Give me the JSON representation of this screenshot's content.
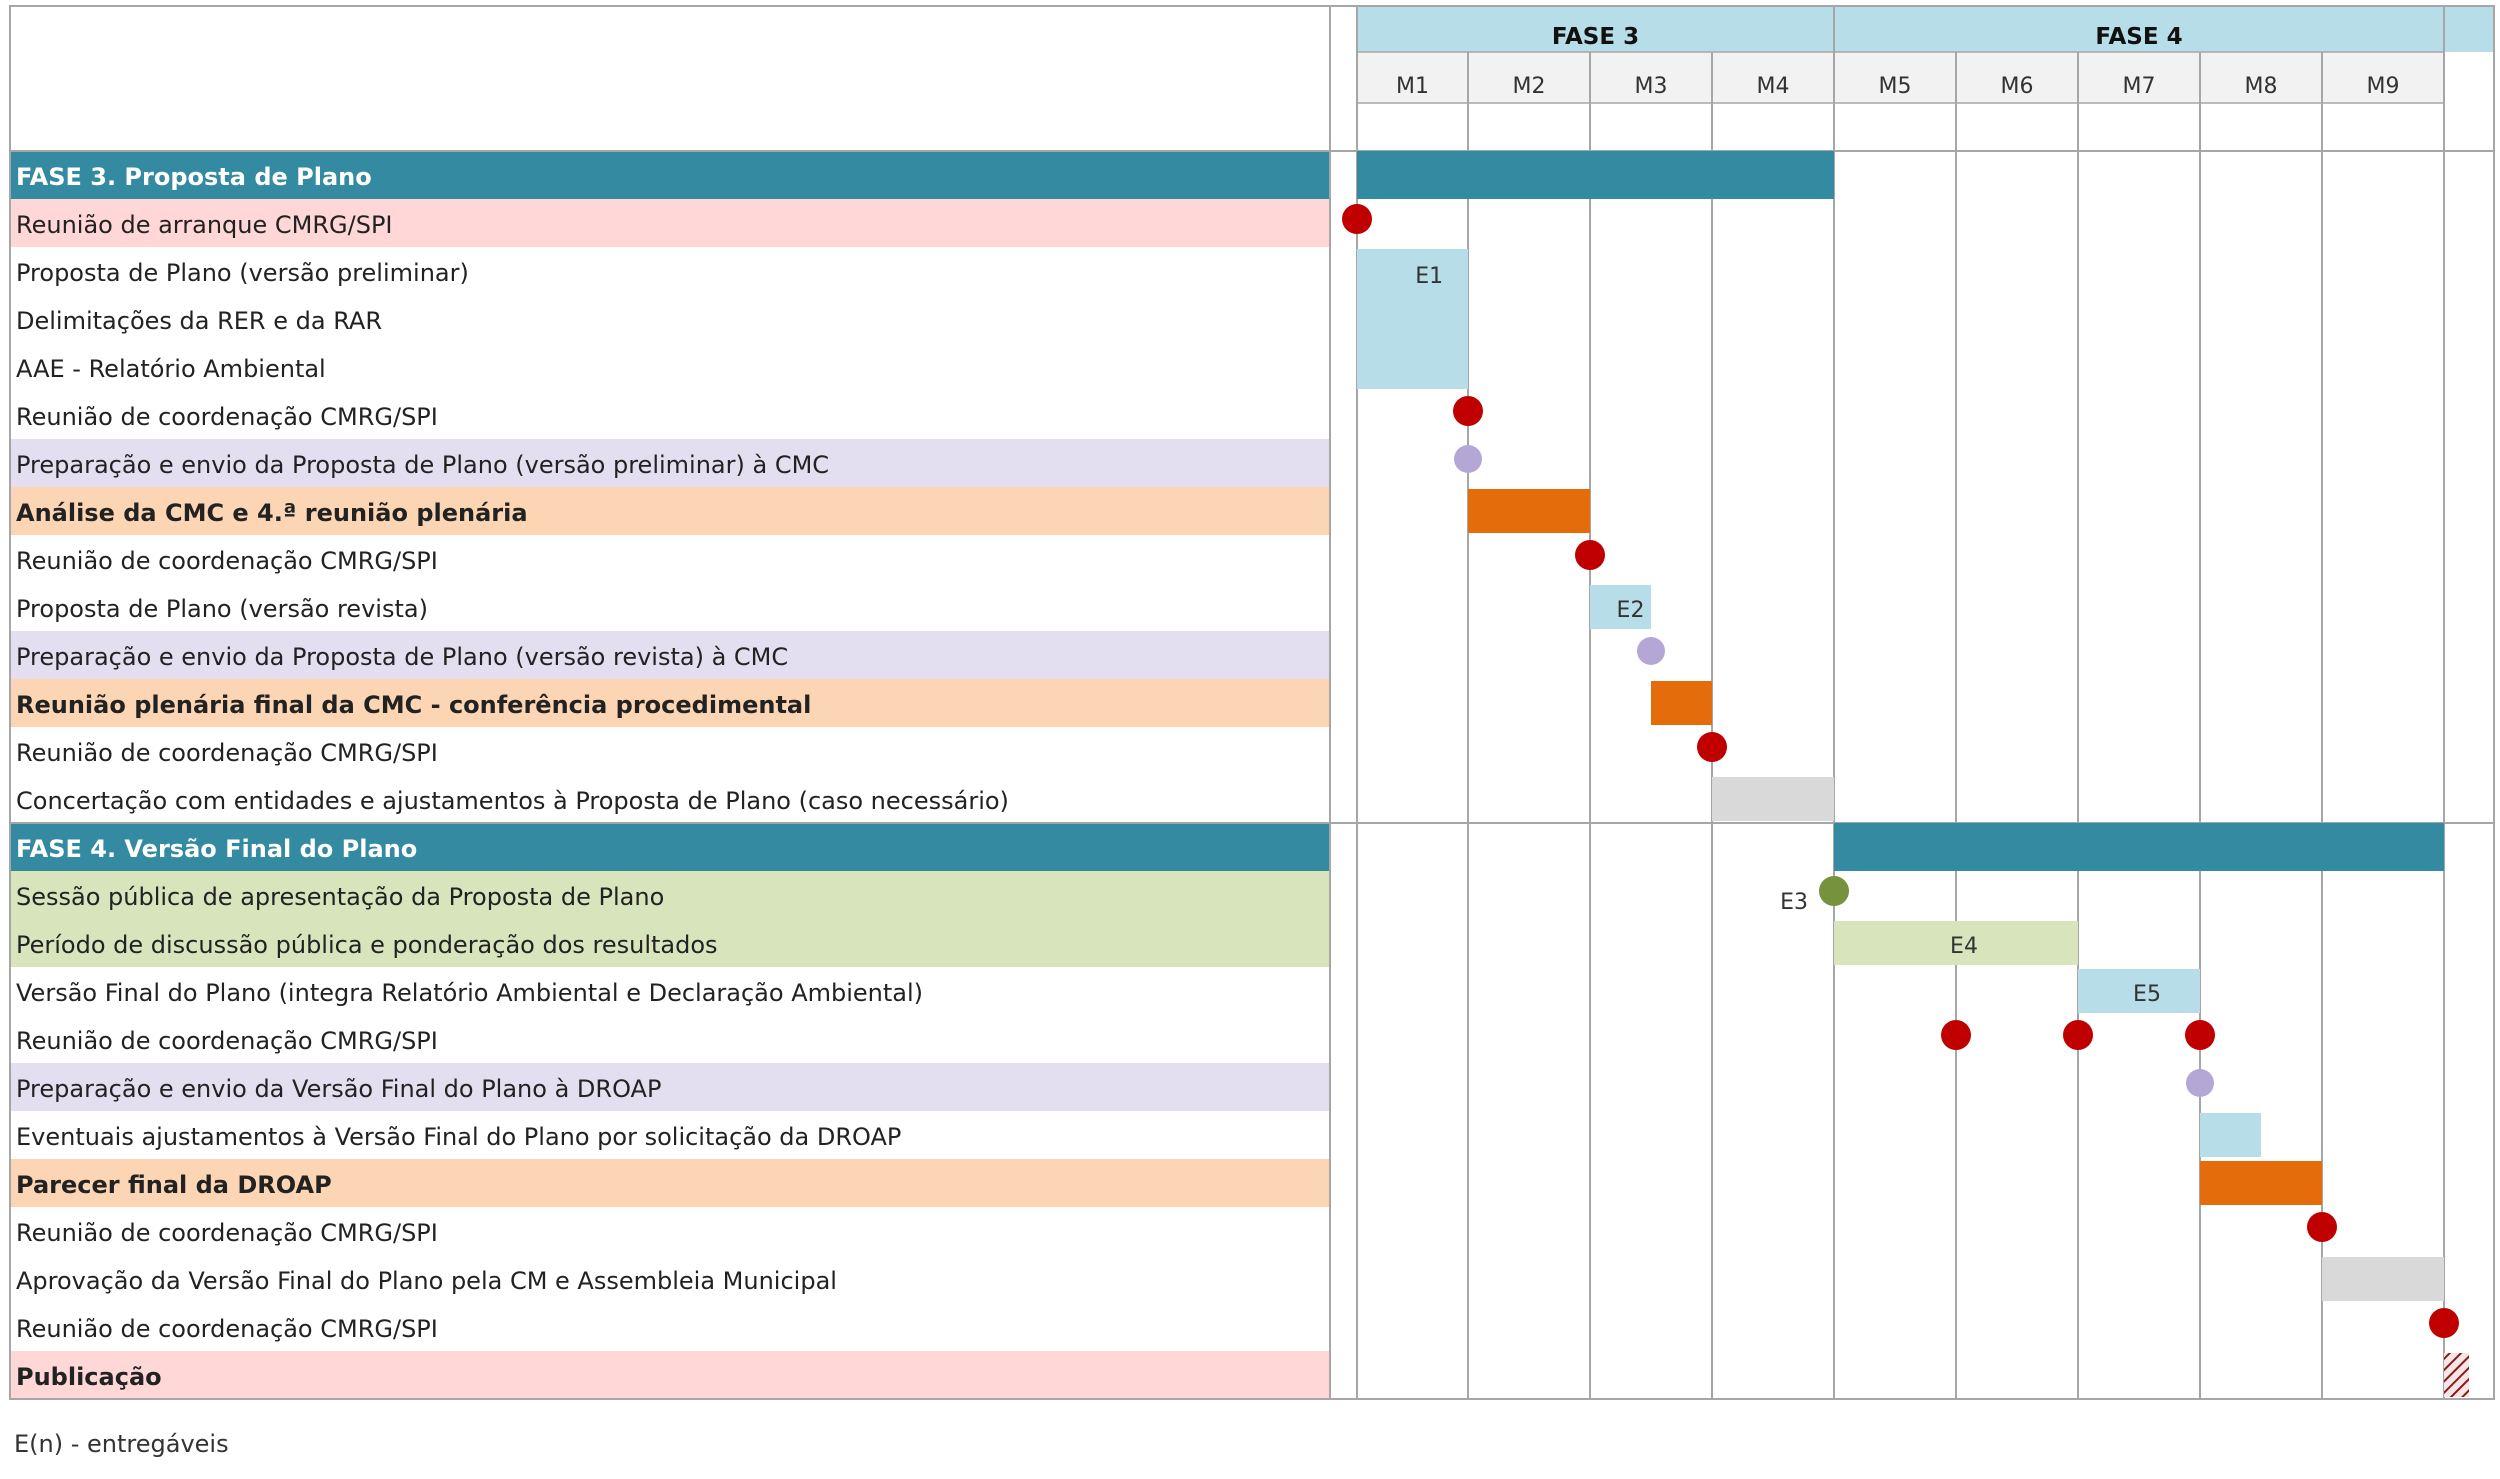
{
  "footnote": "E(n) - entregáveis",
  "chart_data": {
    "type": "gantt",
    "phases_header": [
      {
        "label": "FASE 3",
        "months": [
          "M1",
          "M2",
          "M3",
          "M4"
        ]
      },
      {
        "label": "FASE 4",
        "months": [
          "M5",
          "M6",
          "M7",
          "M8",
          "M9"
        ]
      }
    ],
    "months": [
      "M1",
      "M2",
      "M3",
      "M4",
      "M5",
      "M6",
      "M7",
      "M8",
      "M9"
    ],
    "colors": {
      "phase": "#338aa1",
      "header": "#b7dde8",
      "deliverable": "#b7dde8",
      "cmc": "#e46c0a",
      "pending": "#d9d9d9",
      "public": "#d7e4bc",
      "meeting": "#c00000",
      "send": "#b4a7d6",
      "session": "#76923c",
      "row_pink": "#ffd7d7",
      "row_lilac": "#e4dff0",
      "row_peach": "#fcd5b4",
      "row_green": "#d7e4bc"
    },
    "rows": [
      {
        "label": "FASE 3. Proposta de Plano",
        "type": "phase",
        "bar": [
          0,
          4
        ],
        "color": "phase"
      },
      {
        "label": "Reunião de arranque CMRG/SPI",
        "bg": "row_pink",
        "marker": {
          "at": 0,
          "color": "meeting"
        }
      },
      {
        "label": "Proposta de Plano (versão preliminar)",
        "span": {
          "start": 0,
          "end": 1,
          "rows": 3,
          "color": "deliverable",
          "tag": "E1"
        }
      },
      {
        "label": "Delimitações da RER e da RAR"
      },
      {
        "label": "AAE - Relatório Ambiental"
      },
      {
        "label": "Reunião de coordenação CMRG/SPI",
        "marker": {
          "at": 1,
          "color": "meeting"
        }
      },
      {
        "label": "Preparação e envio da Proposta de Plano (versão preliminar) à CMC",
        "bg": "row_lilac",
        "marker": {
          "at": 1,
          "color": "send",
          "small": true
        }
      },
      {
        "label": "Análise da CMC e 4.ª reunião plenária",
        "bold": true,
        "bg": "row_peach",
        "bar": [
          1,
          2
        ],
        "color": "cmc"
      },
      {
        "label": "Reunião de coordenação CMRG/SPI",
        "marker": {
          "at": 2,
          "color": "meeting"
        }
      },
      {
        "label": "Proposta de Plano (versão revista)",
        "bar": [
          2,
          2.5
        ],
        "color": "deliverable",
        "tag": "E2"
      },
      {
        "label": "Preparação e envio da Proposta de Plano (versão revista) à CMC",
        "bg": "row_lilac",
        "marker": {
          "at": 2.5,
          "color": "send",
          "small": true
        }
      },
      {
        "label": "Reunião plenária final da CMC - conferência procedimental",
        "bold": true,
        "bg": "row_peach",
        "bar": [
          2.5,
          3
        ],
        "color": "cmc"
      },
      {
        "label": "Reunião de coordenação CMRG/SPI",
        "marker": {
          "at": 3,
          "color": "meeting"
        }
      },
      {
        "label": "Concertação com entidades e ajustamentos à Proposta de Plano (caso necessário)",
        "bar": [
          3,
          4
        ],
        "color": "pending"
      },
      {
        "label": "FASE 4. Versão Final do Plano",
        "type": "phase",
        "bar": [
          4,
          9
        ],
        "color": "phase"
      },
      {
        "label": "Sessão pública de apresentação da Proposta de Plano",
        "bg": "row_green",
        "marker": {
          "at": 4,
          "color": "session"
        },
        "tag_left": "E3"
      },
      {
        "label": "Período de discussão pública e ponderação dos resultados",
        "bg": "row_green",
        "bar": [
          4,
          6
        ],
        "color": "public",
        "tag": "E4"
      },
      {
        "label": "Versão Final do Plano (integra Relatório Ambiental e Declaração Ambiental)",
        "bar": [
          6,
          7
        ],
        "color": "deliverable",
        "tag": "E5"
      },
      {
        "label": "Reunião de coordenação CMRG/SPI",
        "markers": [
          5,
          6,
          7
        ],
        "color": "meeting"
      },
      {
        "label": "Preparação e envio da Versão Final do Plano à DROAP",
        "bg": "row_lilac",
        "marker": {
          "at": 7,
          "color": "send",
          "small": true
        }
      },
      {
        "label": "Eventuais ajustamentos à Versão Final do Plano por solicitação da DROAP",
        "bar": [
          7,
          7.5
        ],
        "color": "deliverable"
      },
      {
        "label": "Parecer final da DROAP",
        "bold": true,
        "bg": "row_peach",
        "bar": [
          7,
          8
        ],
        "color": "cmc"
      },
      {
        "label": "Reunião de coordenação CMRG/SPI",
        "marker": {
          "at": 8,
          "color": "meeting"
        }
      },
      {
        "label": "Aprovação da Versão Final do Plano pela CM e Assembleia Municipal",
        "bar": [
          8,
          9
        ],
        "color": "pending"
      },
      {
        "label": "Reunião de coordenação CMRG/SPI",
        "marker": {
          "at": 9,
          "color": "meeting"
        }
      },
      {
        "label": "Publicação",
        "bold": true,
        "bg": "row_pink",
        "hatch": [
          9,
          9.5
        ]
      }
    ]
  }
}
